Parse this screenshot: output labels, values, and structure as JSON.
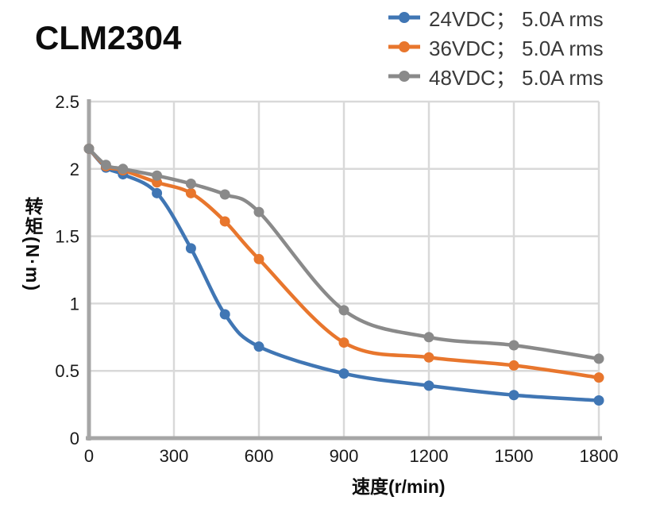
{
  "title": "CLM2304",
  "chart_data": {
    "type": "line",
    "title": "CLM2304",
    "xlabel": "速度(r/min)",
    "ylabel": "转矩(N·m)",
    "xlim": [
      0,
      1800
    ],
    "ylim": [
      0,
      2.5
    ],
    "x_ticks": [
      0,
      300,
      600,
      900,
      1200,
      1500,
      1800
    ],
    "y_ticks": [
      0,
      0.5,
      1,
      1.5,
      2,
      2.5
    ],
    "grid": true,
    "legend_position": "top-right",
    "x": [
      0,
      60,
      120,
      240,
      360,
      480,
      600,
      900,
      1200,
      1500,
      1800
    ],
    "series": [
      {
        "id": "24vdc",
        "name": "24VDC； 5.0A rms",
        "color": "#4076B4",
        "values": [
          2.15,
          2.01,
          1.96,
          1.82,
          1.41,
          0.92,
          0.68,
          0.48,
          0.39,
          0.32,
          0.28
        ]
      },
      {
        "id": "36vdc",
        "name": "36VDC； 5.0A rms",
        "color": "#E8762D",
        "values": [
          2.15,
          2.02,
          1.99,
          1.9,
          1.82,
          1.61,
          1.33,
          0.71,
          0.6,
          0.54,
          0.45
        ]
      },
      {
        "id": "48vdc",
        "name": "48VDC； 5.0A rms",
        "color": "#8A8A8A",
        "values": [
          2.15,
          2.03,
          2.0,
          1.95,
          1.89,
          1.81,
          1.68,
          0.95,
          0.75,
          0.69,
          0.59
        ]
      }
    ],
    "colors": {
      "grid": "#D9D9D9",
      "axis": "#A6A6A6",
      "tick_text": "#1a1a1a",
      "legend_text": "#3a3a3a",
      "title_text": "#0d0d0d"
    }
  }
}
